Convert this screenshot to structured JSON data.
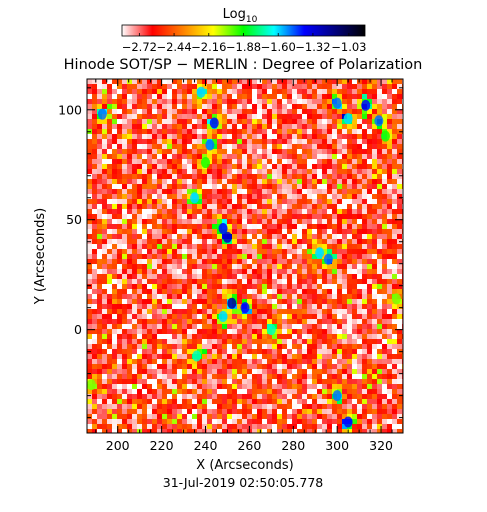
{
  "chart_data": {
    "type": "heatmap",
    "title": "Hinode SOT/SP − MERLIN : Degree of Polarization",
    "xlabel": "X (Arcseconds)",
    "ylabel": "Y (Arcseconds)",
    "timestamp": "31-Jul-2019 02:50:05.778",
    "xlim": [
      186,
      330
    ],
    "ylim": [
      -47,
      114
    ],
    "xticks": [
      200,
      220,
      240,
      260,
      280,
      300,
      320
    ],
    "yticks": [
      0,
      50,
      100
    ],
    "grid": false,
    "colorbar": {
      "label": "Log",
      "label_sub": "10",
      "min": -2.86,
      "max": -0.9,
      "ticks": [
        -2.72,
        -2.44,
        -2.16,
        -1.88,
        -1.6,
        -1.32,
        -1.03
      ],
      "colormap": [
        "#ffffff",
        "#ff0000",
        "#ff8000",
        "#ffff00",
        "#00ff00",
        "#00ffff",
        "#0000ff",
        "#000080",
        "#000000"
      ]
    },
    "background_level": -2.65,
    "features": [
      {
        "x": 193,
        "y": 98,
        "level": -1.5
      },
      {
        "x": 238,
        "y": 108,
        "level": -1.6
      },
      {
        "x": 244,
        "y": 94,
        "level": -1.4
      },
      {
        "x": 242,
        "y": 84,
        "level": -1.5
      },
      {
        "x": 240,
        "y": 76,
        "level": -1.9
      },
      {
        "x": 235,
        "y": 60,
        "level": -1.6
      },
      {
        "x": 250,
        "y": 42,
        "level": -1.3
      },
      {
        "x": 248,
        "y": 46,
        "level": -1.4
      },
      {
        "x": 300,
        "y": 103,
        "level": -1.5
      },
      {
        "x": 305,
        "y": 96,
        "level": -1.6
      },
      {
        "x": 313,
        "y": 102,
        "level": -1.4
      },
      {
        "x": 319,
        "y": 95,
        "level": -1.5
      },
      {
        "x": 322,
        "y": 88,
        "level": -1.9
      },
      {
        "x": 292,
        "y": 35,
        "level": -1.6
      },
      {
        "x": 296,
        "y": 32,
        "level": -1.5
      },
      {
        "x": 252,
        "y": 12,
        "level": -1.2
      },
      {
        "x": 258,
        "y": 10,
        "level": -1.4
      },
      {
        "x": 248,
        "y": 6,
        "level": -1.6
      },
      {
        "x": 270,
        "y": 0,
        "level": -1.7
      },
      {
        "x": 236,
        "y": -12,
        "level": -1.7
      },
      {
        "x": 300,
        "y": -30,
        "level": -1.5
      },
      {
        "x": 305,
        "y": -42,
        "level": -1.4
      },
      {
        "x": 188,
        "y": -25,
        "level": -2.0
      },
      {
        "x": 327,
        "y": 14,
        "level": -2.0
      }
    ]
  }
}
